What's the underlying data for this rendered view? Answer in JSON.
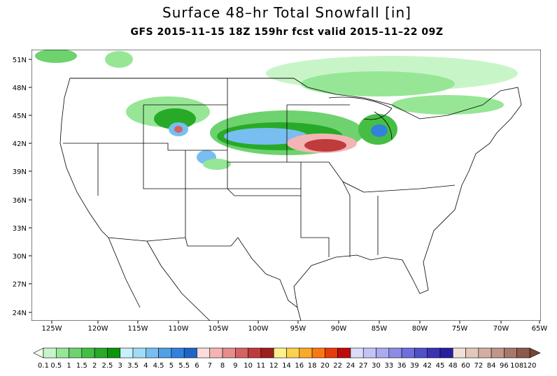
{
  "header": {
    "title": "Surface 48–hr Total Snowfall [in]",
    "subtitle": "GFS 2015–11–15 18Z 159hr fcst valid 2015–11–22 09Z"
  },
  "map": {
    "lat_labels": [
      "51N",
      "48N",
      "45N",
      "42N",
      "39N",
      "36N",
      "33N",
      "30N",
      "27N",
      "24N"
    ],
    "lon_labels": [
      "125W",
      "120W",
      "115W",
      "110W",
      "105W",
      "100W",
      "95W",
      "90W",
      "85W",
      "80W",
      "75W",
      "70W",
      "65W"
    ]
  },
  "colorbar": {
    "levels": [
      "0.1",
      "0.5",
      "1",
      "1.5",
      "2",
      "2.5",
      "3",
      "3.5",
      "4",
      "4.5",
      "5",
      "5.5",
      "6",
      "7",
      "8",
      "9",
      "10",
      "11",
      "12",
      "14",
      "16",
      "18",
      "20",
      "22",
      "24",
      "27",
      "30",
      "33",
      "36",
      "39",
      "42",
      "45",
      "48",
      "60",
      "72",
      "84",
      "96",
      "108",
      "120"
    ],
    "colors": [
      "#c8f5c8",
      "#96e696",
      "#6ed26e",
      "#46be46",
      "#28aa28",
      "#0a960a",
      "#c8f0fa",
      "#a0dcf5",
      "#78bef0",
      "#50a0e6",
      "#3282dc",
      "#1e64c8",
      "#fadcdc",
      "#f5b4b4",
      "#e68c8c",
      "#d26464",
      "#be3c3c",
      "#a01e1e",
      "#fff08c",
      "#fad250",
      "#faaa28",
      "#fa7814",
      "#e63c0a",
      "#be0a0a",
      "#dcdcfa",
      "#c3c3f5",
      "#aaaaf0",
      "#8c8ce6",
      "#6e6edc",
      "#5050c8",
      "#3c32b4",
      "#281ea0",
      "#f0e1d7",
      "#e1c8b9",
      "#d2afa0",
      "#be968c",
      "#a57869",
      "#8c5a4b"
    ],
    "under_color": "#f0fff0",
    "over_color": "#784632"
  }
}
